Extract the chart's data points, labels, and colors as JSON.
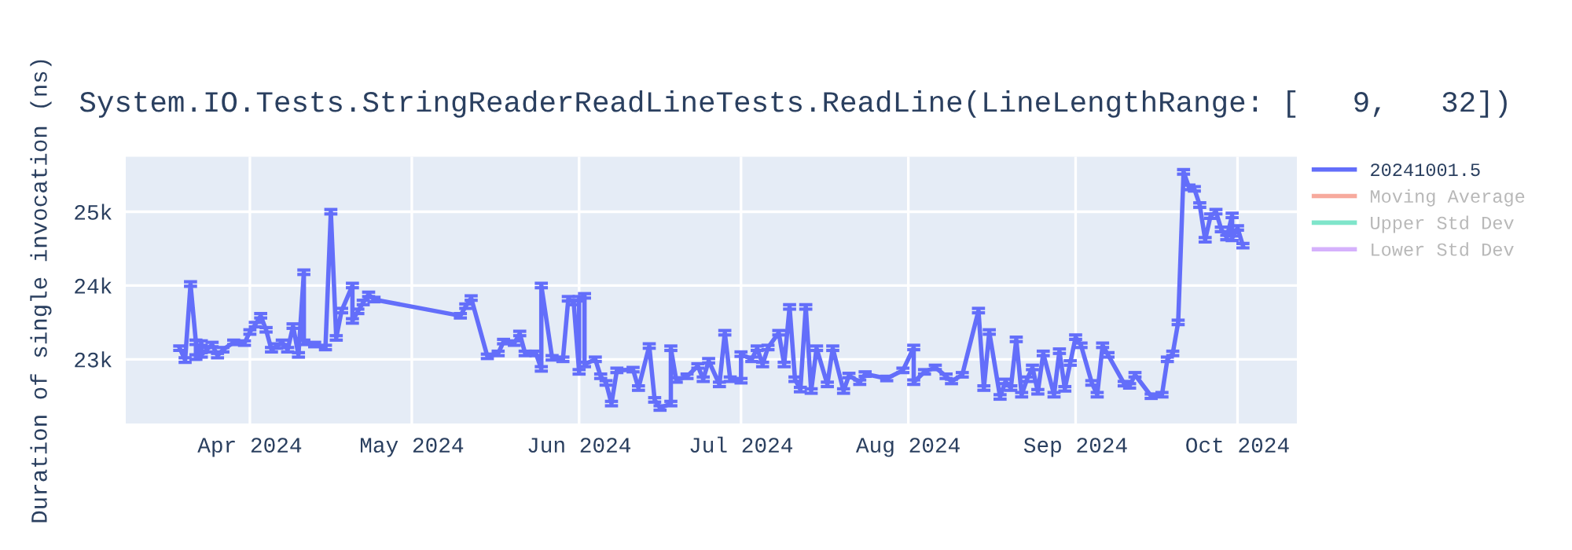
{
  "chart_data": {
    "type": "line",
    "title": "System.IO.Tests.StringReaderReadLineTests.ReadLine(LineLengthRange: [   9,   32])",
    "ylabel": "Duration of single invocation (ns)",
    "xlim": [
      "2024-03-09",
      "2024-10-12"
    ],
    "xticks": [
      {
        "value": "2024-04-01",
        "label": "Apr 2024"
      },
      {
        "value": "2024-05-01",
        "label": "May 2024"
      },
      {
        "value": "2024-06-01",
        "label": "Jun 2024"
      },
      {
        "value": "2024-07-01",
        "label": "Jul 2024"
      },
      {
        "value": "2024-08-01",
        "label": "Aug 2024"
      },
      {
        "value": "2024-09-01",
        "label": "Sep 2024"
      },
      {
        "value": "2024-10-01",
        "label": "Oct 2024"
      }
    ],
    "ylim": [
      22130,
      25745
    ],
    "yticks": [
      {
        "value": 23000,
        "label": "23k"
      },
      {
        "value": 24000,
        "label": "24k"
      },
      {
        "value": 25000,
        "label": "25k"
      }
    ],
    "grid": true,
    "legend": "right",
    "series": [
      {
        "name": "20241001.5",
        "color": "#636efa",
        "x": [
          "2024-03-19",
          "2024-03-20",
          "2024-03-21",
          "2024-03-22",
          "2024-03-22",
          "2024-03-23",
          "2024-03-23",
          "2024-03-24",
          "2024-03-25",
          "2024-03-26",
          "2024-03-27",
          "2024-03-29",
          "2024-03-31",
          "2024-04-01",
          "2024-04-02",
          "2024-04-03",
          "2024-04-04",
          "2024-04-05",
          "2024-04-06",
          "2024-04-07",
          "2024-04-08",
          "2024-04-09",
          "2024-04-10",
          "2024-04-11",
          "2024-04-11",
          "2024-04-13",
          "2024-04-15",
          "2024-04-16",
          "2024-04-17",
          "2024-04-18",
          "2024-04-20",
          "2024-04-20",
          "2024-04-21",
          "2024-04-22",
          "2024-04-23",
          "2024-04-24",
          "2024-05-10",
          "2024-05-11",
          "2024-05-12",
          "2024-05-15",
          "2024-05-17",
          "2024-05-18",
          "2024-05-20",
          "2024-05-21",
          "2024-05-22",
          "2024-05-24",
          "2024-05-25",
          "2024-05-25",
          "2024-05-27",
          "2024-05-29",
          "2024-05-30",
          "2024-05-31",
          "2024-06-01",
          "2024-06-01",
          "2024-06-02",
          "2024-06-02",
          "2024-06-04",
          "2024-06-05",
          "2024-06-06",
          "2024-06-07",
          "2024-06-08",
          "2024-06-11",
          "2024-06-12",
          "2024-06-14",
          "2024-06-15",
          "2024-06-16",
          "2024-06-18",
          "2024-06-18",
          "2024-06-19",
          "2024-06-21",
          "2024-06-23",
          "2024-06-24",
          "2024-06-25",
          "2024-06-27",
          "2024-06-28",
          "2024-06-29",
          "2024-07-01",
          "2024-07-01",
          "2024-07-03",
          "2024-07-04",
          "2024-07-05",
          "2024-07-06",
          "2024-07-08",
          "2024-07-09",
          "2024-07-10",
          "2024-07-11",
          "2024-07-12",
          "2024-07-13",
          "2024-07-14",
          "2024-07-15",
          "2024-07-17",
          "2024-07-18",
          "2024-07-20",
          "2024-07-21",
          "2024-07-23",
          "2024-07-24",
          "2024-07-28",
          "2024-07-31",
          "2024-08-02",
          "2024-08-02",
          "2024-08-04",
          "2024-08-06",
          "2024-08-08",
          "2024-08-09",
          "2024-08-11",
          "2024-08-14",
          "2024-08-15",
          "2024-08-16",
          "2024-08-18",
          "2024-08-19",
          "2024-08-20",
          "2024-08-21",
          "2024-08-22",
          "2024-08-23",
          "2024-08-24",
          "2024-08-25",
          "2024-08-26",
          "2024-08-28",
          "2024-08-29",
          "2024-08-30",
          "2024-08-31",
          "2024-09-01",
          "2024-09-02",
          "2024-09-04",
          "2024-09-05",
          "2024-09-06",
          "2024-09-07",
          "2024-09-10",
          "2024-09-11",
          "2024-09-12",
          "2024-09-15",
          "2024-09-17",
          "2024-09-18",
          "2024-09-19",
          "2024-09-20",
          "2024-09-21",
          "2024-09-22",
          "2024-09-23",
          "2024-09-24",
          "2024-09-25",
          "2024-09-26",
          "2024-09-27",
          "2024-09-28",
          "2024-09-29",
          "2024-09-30",
          "2024-09-30",
          "2024-10-01",
          "2024-10-02"
        ],
        "values": [
          23150,
          22990,
          24020,
          23230,
          23030,
          23220,
          23060,
          23130,
          23200,
          23050,
          23130,
          23230,
          23220,
          23370,
          23470,
          23590,
          23400,
          23130,
          23180,
          23230,
          23130,
          23450,
          23060,
          24180,
          23230,
          23200,
          23160,
          25000,
          23290,
          23660,
          24000,
          23520,
          23650,
          23770,
          23880,
          23810,
          23590,
          23720,
          23830,
          23040,
          23080,
          23240,
          23220,
          23350,
          23080,
          23080,
          22870,
          24000,
          23020,
          23000,
          23820,
          23770,
          22830,
          23820,
          23860,
          22930,
          23000,
          22770,
          22680,
          22400,
          22850,
          22860,
          22610,
          23180,
          22450,
          22340,
          22400,
          23150,
          22720,
          22770,
          22910,
          22730,
          22980,
          22660,
          23360,
          22730,
          22710,
          23070,
          23000,
          23150,
          22930,
          23160,
          23360,
          22930,
          23710,
          22730,
          22590,
          23710,
          22570,
          23150,
          22660,
          23150,
          22570,
          22780,
          22690,
          22800,
          22740,
          22850,
          23160,
          22690,
          22830,
          22890,
          22770,
          22700,
          22790,
          23660,
          22610,
          23370,
          22490,
          22700,
          22610,
          23270,
          22520,
          22730,
          22890,
          22560,
          23080,
          22520,
          23110,
          22600,
          22950,
          23300,
          23190,
          22680,
          22520,
          23190,
          23060,
          22670,
          22640,
          22790,
          22500,
          22520,
          23000,
          23080,
          23500,
          25540,
          25330,
          25310,
          25090,
          24620,
          24940,
          25000,
          24760,
          24650,
          24950,
          24640,
          24780,
          24540
        ],
        "errors": [
          30,
          30,
          30,
          30,
          30,
          30,
          30,
          30,
          30,
          30,
          30,
          30,
          30,
          30,
          30,
          30,
          30,
          30,
          30,
          30,
          30,
          30,
          30,
          30,
          30,
          30,
          30,
          30,
          30,
          30,
          30,
          30,
          30,
          30,
          30,
          30,
          30,
          30,
          30,
          30,
          30,
          30,
          30,
          30,
          30,
          30,
          30,
          30,
          30,
          30,
          30,
          30,
          30,
          30,
          30,
          30,
          30,
          30,
          30,
          30,
          30,
          30,
          30,
          30,
          30,
          30,
          30,
          30,
          30,
          30,
          30,
          30,
          30,
          30,
          30,
          30,
          30,
          30,
          30,
          30,
          30,
          30,
          30,
          30,
          30,
          30,
          30,
          30,
          30,
          30,
          30,
          30,
          30,
          30,
          30,
          30,
          30,
          30,
          30,
          30,
          30,
          30,
          30,
          30,
          30,
          30,
          30,
          30,
          30,
          30,
          30,
          30,
          30,
          30,
          30,
          30,
          30,
          30,
          30,
          30,
          30,
          30,
          30,
          30,
          30,
          30,
          30,
          30,
          30,
          30,
          30,
          30,
          30,
          30,
          30,
          30,
          30,
          30,
          30,
          30,
          30,
          30,
          30,
          30,
          30,
          30,
          30,
          30
        ]
      },
      {
        "name": "Moving Average",
        "color": "#ef553b"
      },
      {
        "name": "Upper Std Dev",
        "color": "#00cc96"
      },
      {
        "name": "Lower Std Dev",
        "color": "#ab63fa"
      }
    ]
  }
}
